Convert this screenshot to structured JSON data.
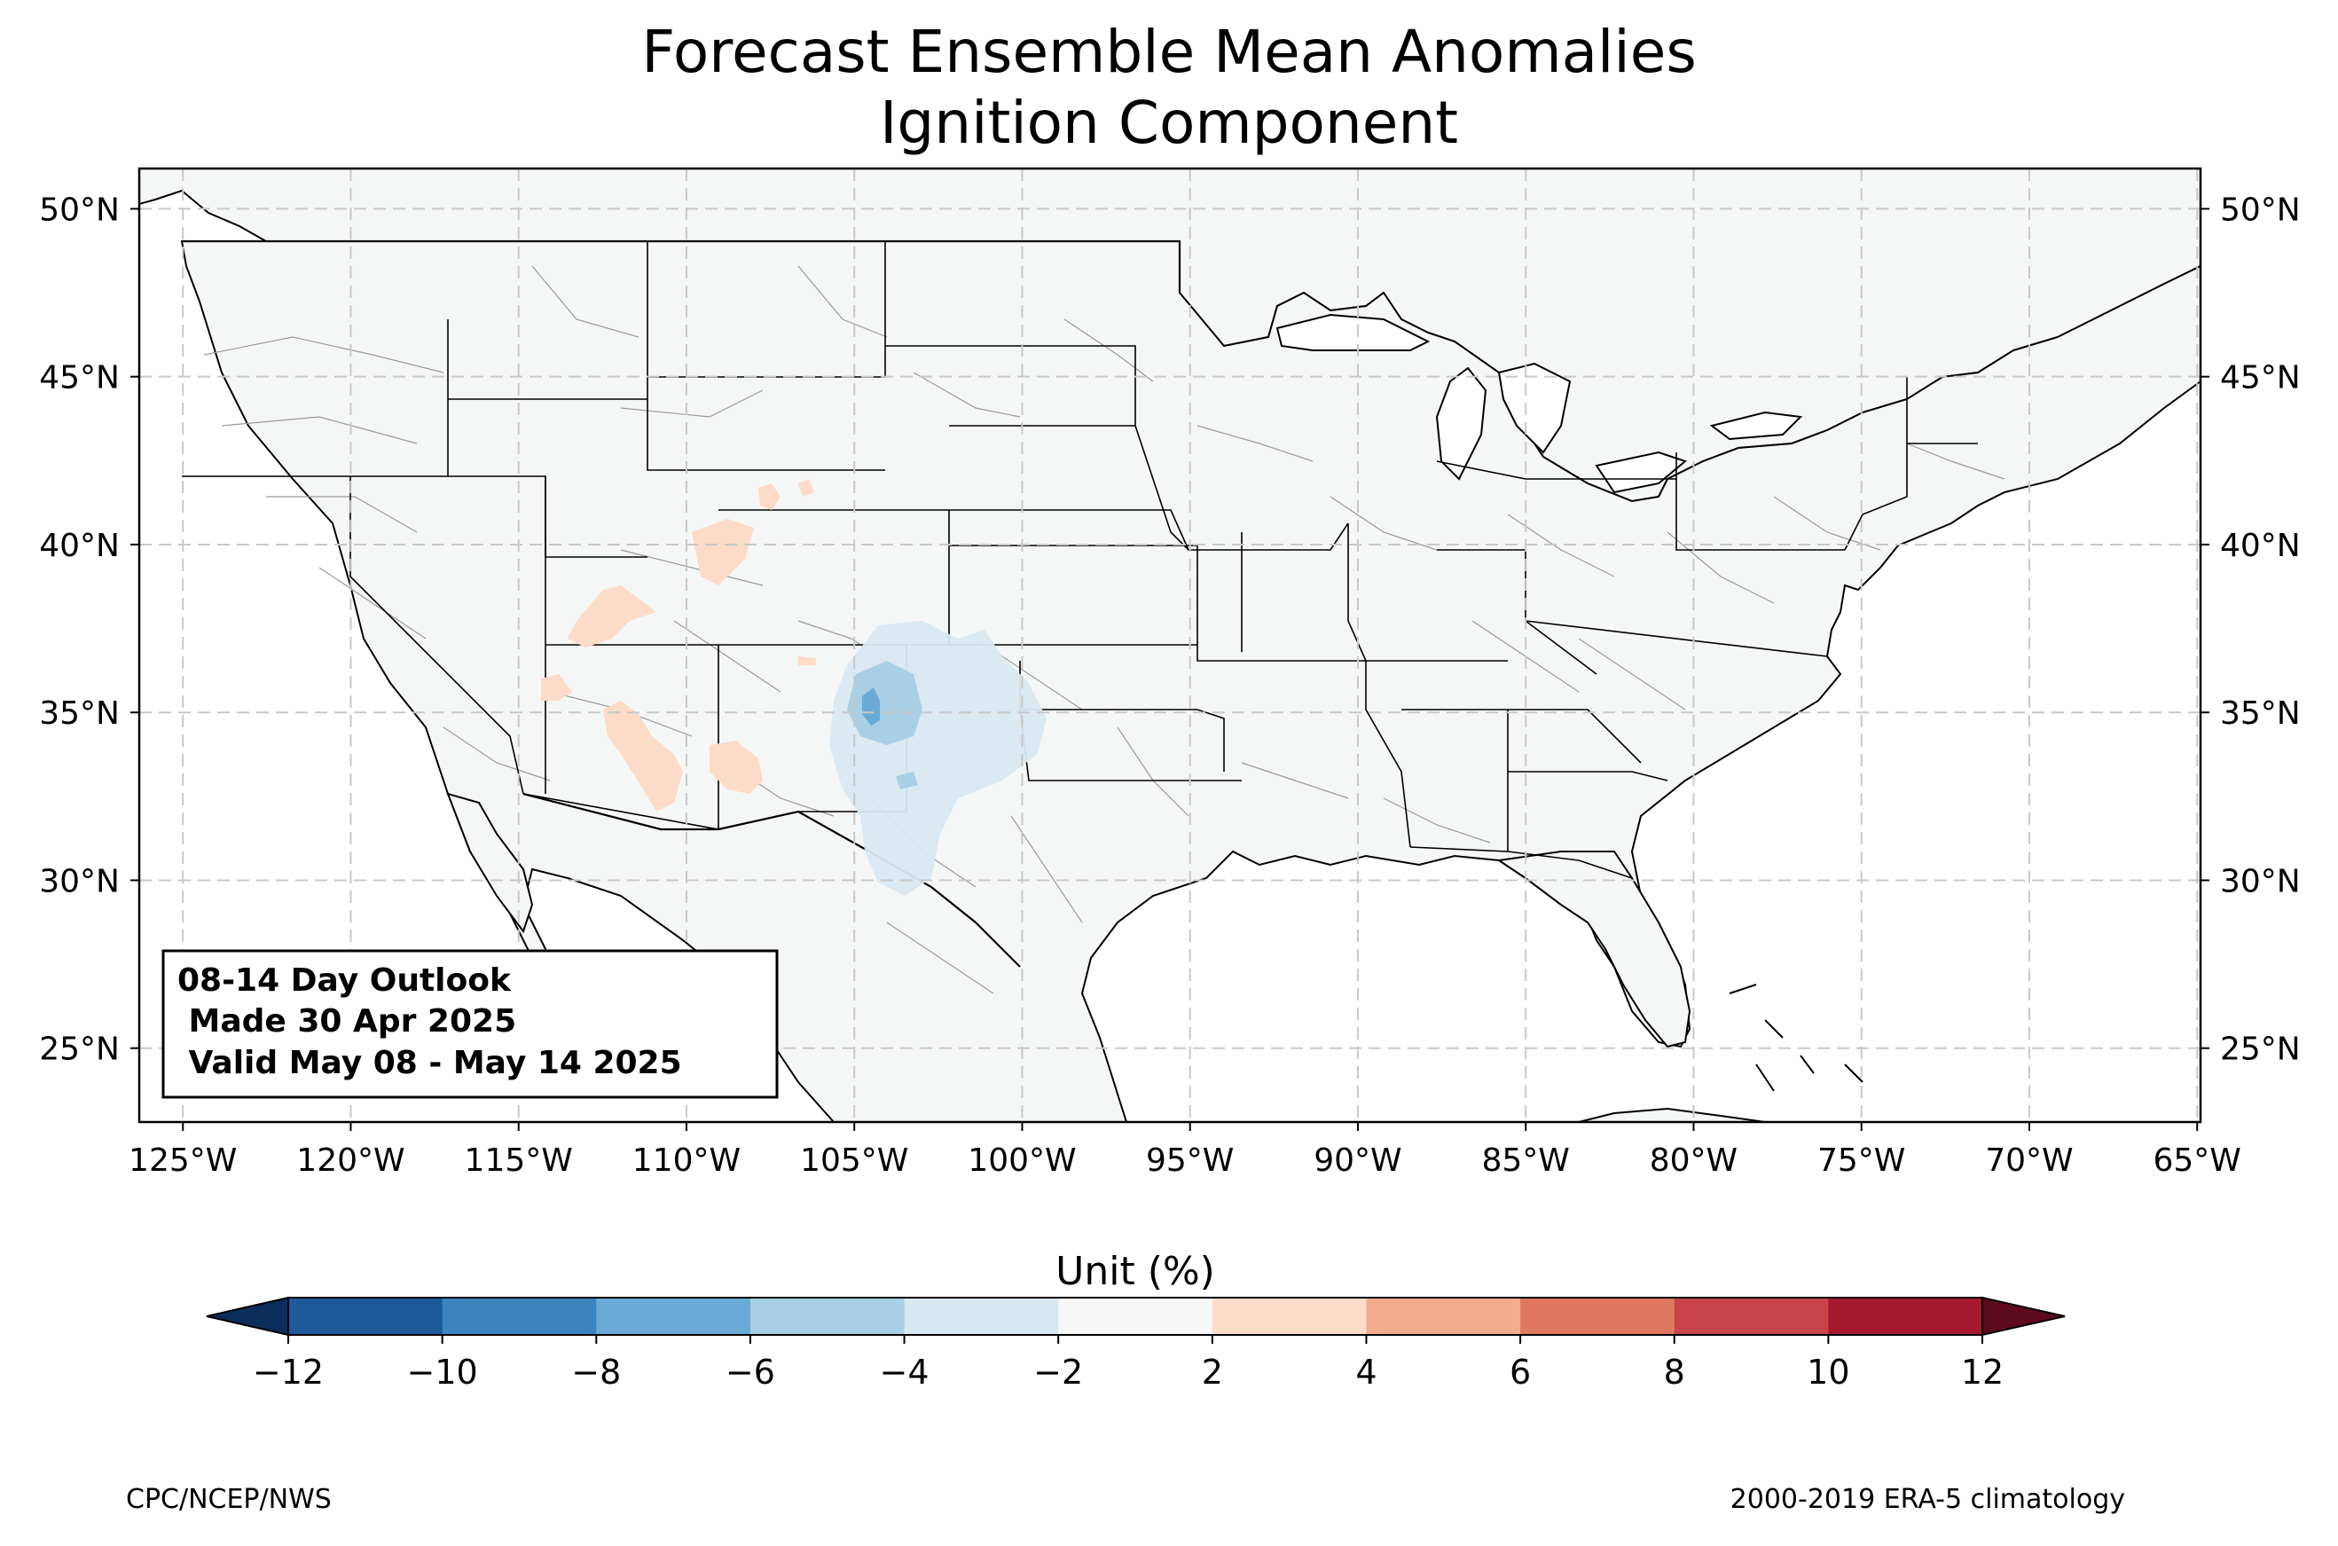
{
  "title": {
    "line1": "Forecast Ensemble Mean Anomalies",
    "line2": "Ignition Component"
  },
  "map": {
    "projection": "PlateCarree",
    "lon_range": [
      -126.3,
      -64.9
    ],
    "lat_range": [
      22.8,
      51.2
    ],
    "gridlines": true,
    "lon_ticks": [
      "125°W",
      "120°W",
      "115°W",
      "110°W",
      "105°W",
      "100°W",
      "95°W",
      "90°W",
      "85°W",
      "80°W",
      "75°W",
      "70°W",
      "65°W"
    ],
    "lat_ticks": [
      "50°N",
      "45°N",
      "40°N",
      "35°N",
      "30°N",
      "25°N"
    ],
    "land_color": "#f5f7f6",
    "ocean_color": "#ffffff"
  },
  "outlook_box": {
    "line1": "08-14 Day Outlook",
    "line2": " Made 30 Apr 2025",
    "line3": " Valid May 08 - May 14 2025"
  },
  "colorbar": {
    "label": "Unit (%)",
    "ticks": [
      "−12",
      "−10",
      "−8",
      "−6",
      "−4",
      "−2",
      "2",
      "4",
      "6",
      "8",
      "10",
      "12"
    ],
    "under_color": "#0c2e5c",
    "over_color": "#5e0a1e",
    "colors": [
      "#1c5a9c",
      "#3a84c0",
      "#6aaad6",
      "#a9cfe4",
      "#d8e8f1",
      "#f7f7f7",
      "#fcdbc8",
      "#f4ad8c",
      "#e0785f",
      "#c8434a",
      "#a5192e"
    ]
  },
  "anomalies": {
    "negative_region": "Southern Rockies / West Texas (−2 to −8)",
    "positive_regions": "Arizona, Utah, Colorado (2 to 4)"
  },
  "footer": {
    "left": "CPC/NCEP/NWS",
    "right": "2000-2019 ERA-5 climatology"
  }
}
